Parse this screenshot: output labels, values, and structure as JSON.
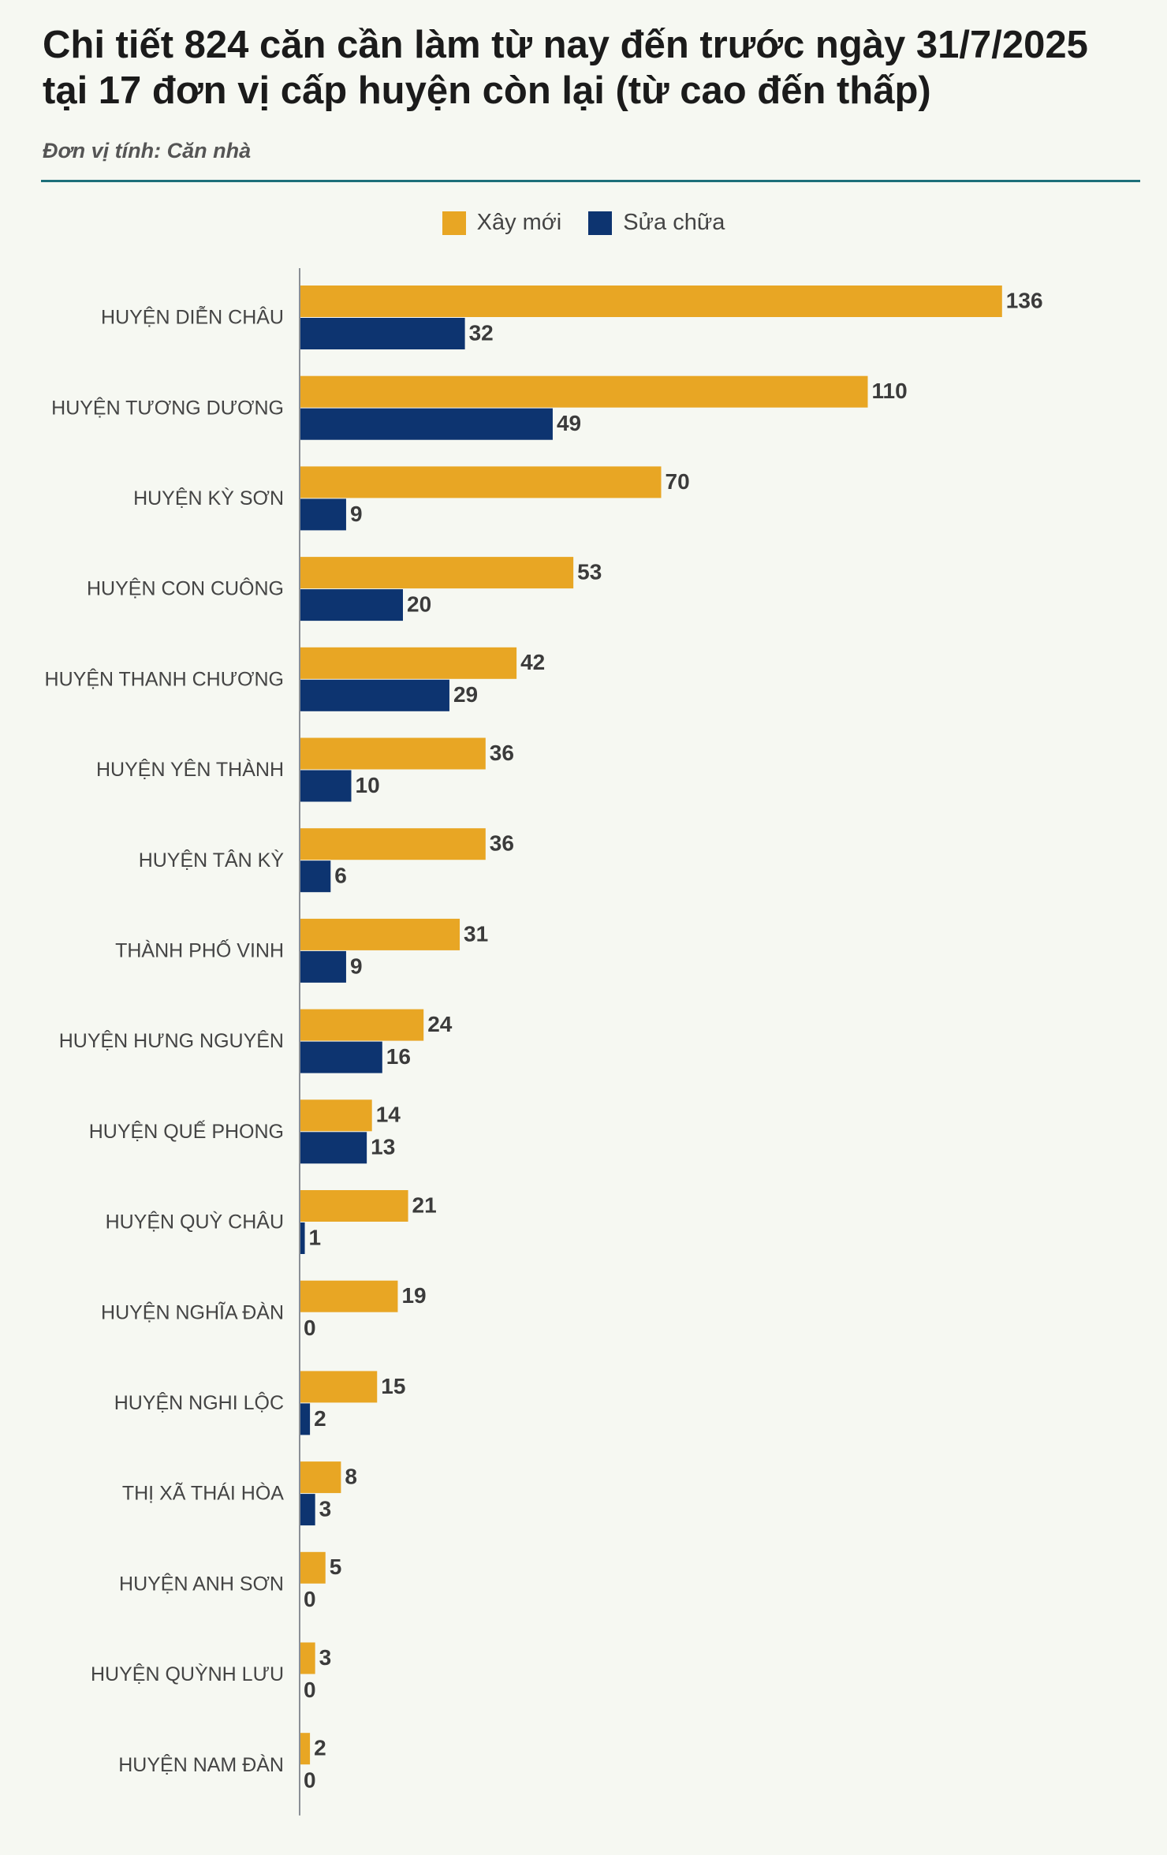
{
  "title": "Chi tiết 824 căn cần làm từ nay đến trước ngày 31/7/2025 tại 17 đơn vị cấp huyện còn lại (từ cao đến thấp)",
  "subtitle": "Đơn vị tính: Căn nhà",
  "colors": {
    "accent_line": "#1d6f7a",
    "xay_moi": "#e8a624",
    "sua_chua": "#0d3470",
    "background": "#f6f8f2"
  },
  "chart_data": {
    "type": "bar",
    "orientation": "horizontal",
    "title": "Chi tiết 824 căn cần làm từ nay đến trước ngày 31/7/2025 tại 17 đơn vị cấp huyện còn lại (từ cao đến thấp)",
    "subtitle": "Đơn vị tính: Căn nhà",
    "legend_position": "top-center",
    "grid": false,
    "xlim": [
      0,
      140
    ],
    "categories": [
      "HUYỆN DIỄN CHÂU",
      "HUYỆN TƯƠNG DƯƠNG",
      "HUYỆN KỲ SƠN",
      "HUYỆN CON CUÔNG",
      "HUYỆN THANH CHƯƠNG",
      "HUYỆN YÊN THÀNH",
      "HUYỆN TÂN KỲ",
      "THÀNH PHỐ VINH",
      "HUYỆN HƯNG NGUYÊN",
      "HUYỆN QUẾ PHONG",
      "HUYỆN QUỲ CHÂU",
      "HUYỆN NGHĨA ĐÀN",
      "HUYỆN NGHI LỘC",
      "THỊ XÃ THÁI HÒA",
      "HUYỆN ANH SƠN",
      "HUYỆN QUỲNH LƯU",
      "HUYỆN NAM ĐÀN"
    ],
    "series": [
      {
        "name": "Xây mới",
        "color": "#e8a624",
        "values": [
          136,
          110,
          70,
          53,
          42,
          36,
          36,
          31,
          24,
          14,
          21,
          19,
          15,
          8,
          5,
          3,
          2
        ]
      },
      {
        "name": "Sửa chữa",
        "color": "#0d3470",
        "values": [
          32,
          49,
          9,
          20,
          29,
          10,
          6,
          9,
          16,
          13,
          1,
          0,
          2,
          3,
          0,
          0,
          0
        ]
      }
    ]
  }
}
